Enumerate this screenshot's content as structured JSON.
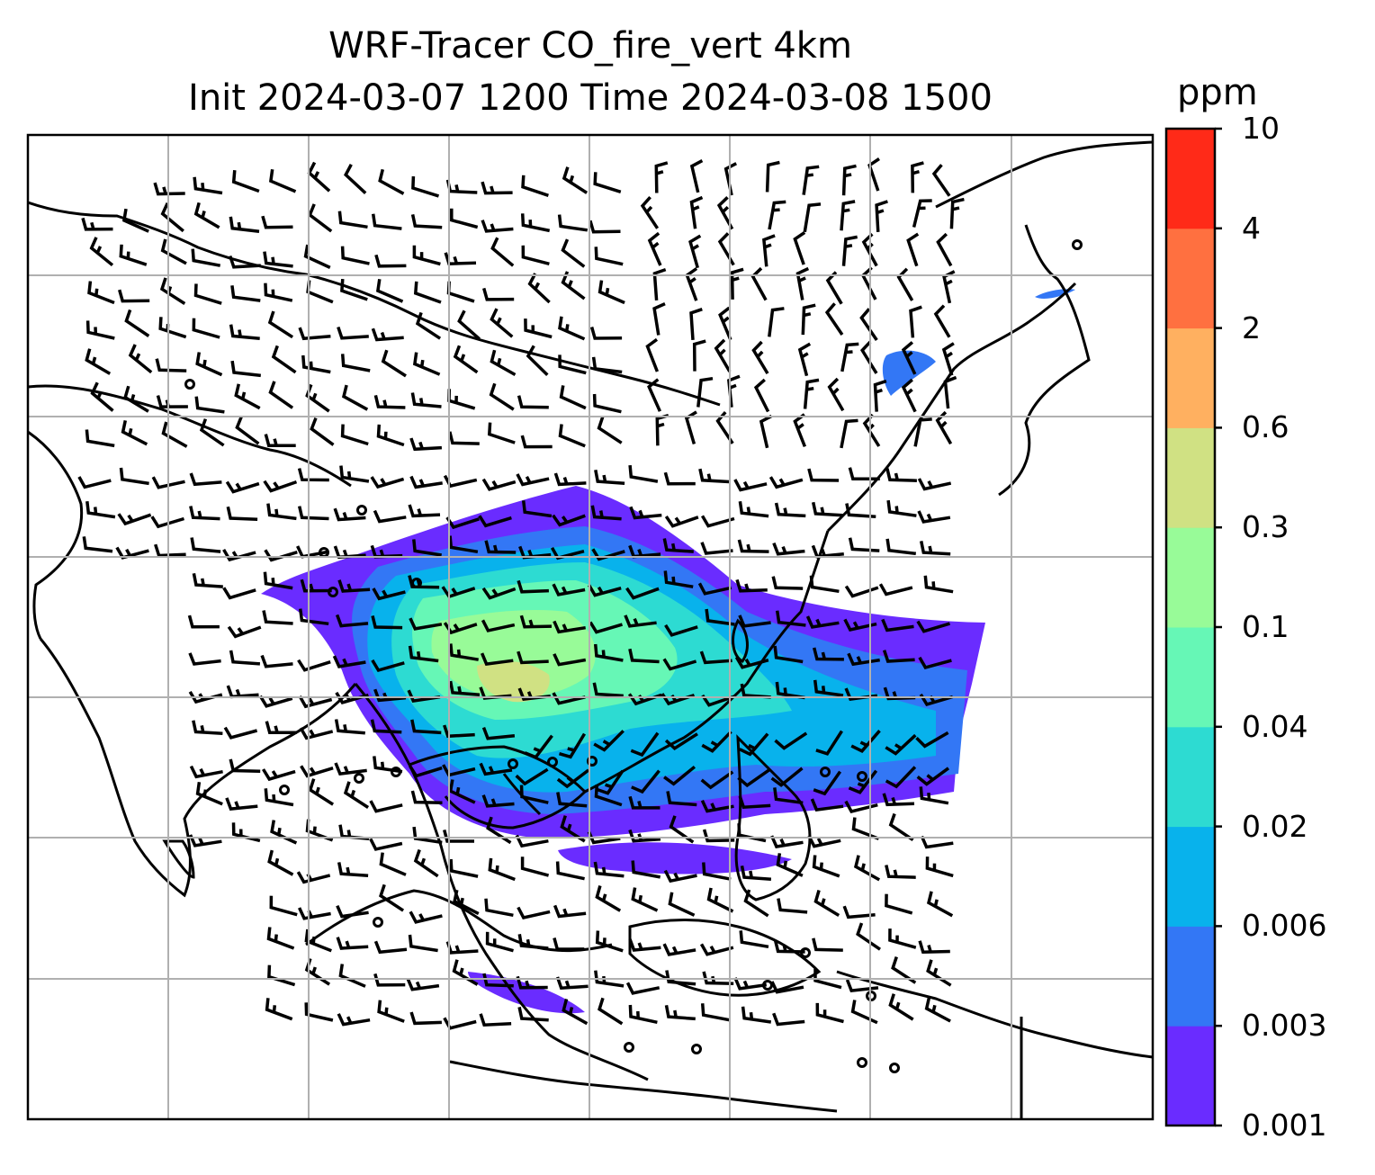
{
  "title": {
    "line1": "WRF-Tracer CO_fire_vert 4km",
    "line2": "Init 2024-03-07 1200 Time 2024-03-08 1500"
  },
  "colorbar": {
    "unit": "ppm",
    "levels": [
      "0.001",
      "0.003",
      "0.006",
      "0.02",
      "0.04",
      "0.1",
      "0.3",
      "0.6",
      "2",
      "4",
      "10"
    ],
    "colors": [
      "#6a2cff",
      "#3377f5",
      "#08b2ec",
      "#2ddbd2",
      "#66f7b6",
      "#98fb98",
      "#d0e183",
      "#ffb060",
      "#ff7040",
      "#ff2a18"
    ]
  },
  "map": {
    "gridlines": true,
    "grid_color": "#b0b0b0",
    "coastline_color": "#000000",
    "field": "CO fire tracer plume over South/Southeast Asia",
    "wind_barbs": true
  }
}
